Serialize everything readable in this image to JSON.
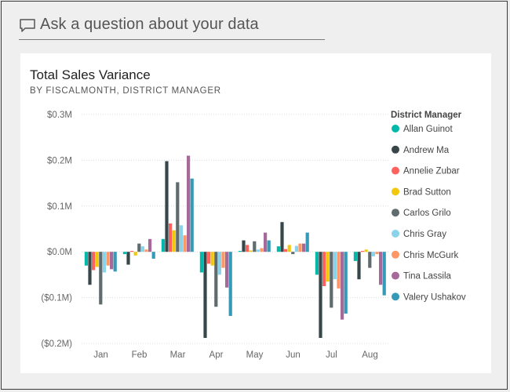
{
  "qa": {
    "icon": "speech-bubble-icon",
    "prompt": "Ask a question about your data"
  },
  "card": {
    "title": "Total Sales Variance",
    "subtitle": "BY FISCALMONTH, DISTRICT MANAGER"
  },
  "chart_data": {
    "type": "bar",
    "title": "Total Sales Variance",
    "subtitle": "BY FISCALMONTH, DISTRICT MANAGER",
    "xlabel": "",
    "ylabel": "",
    "categories": [
      "Jan",
      "Feb",
      "Mar",
      "Apr",
      "May",
      "Jun",
      "Jul",
      "Aug"
    ],
    "ylim": [
      -0.2,
      0.3
    ],
    "yticks": [
      0.3,
      0.2,
      0.1,
      0.0,
      -0.1,
      -0.2
    ],
    "ytick_labels": [
      "$0.3M",
      "$0.2M",
      "$0.1M",
      "$0.0M",
      "($0.1M)",
      "($0.2M)"
    ],
    "grid": true,
    "legend": {
      "title": "District Manager",
      "position": "right"
    },
    "series": [
      {
        "name": "Allan Guinot",
        "color": "#01b8aa",
        "values": [
          -0.03,
          -0.005,
          0.028,
          -0.045,
          0.002,
          0.012,
          -0.05,
          -0.02
        ]
      },
      {
        "name": "Andrew Ma",
        "color": "#374649",
        "values": [
          -0.072,
          -0.028,
          0.198,
          -0.188,
          0.025,
          0.065,
          -0.188,
          -0.06
        ]
      },
      {
        "name": "Annelie Zubar",
        "color": "#fd625e",
        "values": [
          -0.04,
          0.002,
          0.062,
          -0.026,
          0.015,
          0.006,
          -0.075,
          0.002
        ]
      },
      {
        "name": "Brad Sutton",
        "color": "#f2c80f",
        "values": [
          -0.033,
          -0.008,
          0.047,
          -0.03,
          0.003,
          0.015,
          -0.065,
          0.005
        ]
      },
      {
        "name": "Carlos Grilo",
        "color": "#5f6b6d",
        "values": [
          -0.115,
          0.018,
          0.152,
          -0.12,
          0.023,
          -0.005,
          -0.122,
          -0.035
        ]
      },
      {
        "name": "Chris Gray",
        "color": "#8ad4eb",
        "values": [
          -0.045,
          0.012,
          0.058,
          -0.05,
          0.005,
          0.013,
          -0.06,
          -0.01
        ]
      },
      {
        "name": "Chris McGurk",
        "color": "#fe9666",
        "values": [
          -0.03,
          0.005,
          0.036,
          -0.035,
          0.008,
          0.018,
          -0.08,
          -0.005
        ]
      },
      {
        "name": "Tina Lassila",
        "color": "#a66999",
        "values": [
          -0.038,
          0.028,
          0.21,
          -0.078,
          0.042,
          0.018,
          -0.148,
          -0.072
        ]
      },
      {
        "name": "Valery Ushakov",
        "color": "#3599b8",
        "values": [
          -0.043,
          -0.015,
          0.16,
          -0.14,
          0.025,
          0.042,
          -0.135,
          -0.095
        ]
      }
    ]
  }
}
